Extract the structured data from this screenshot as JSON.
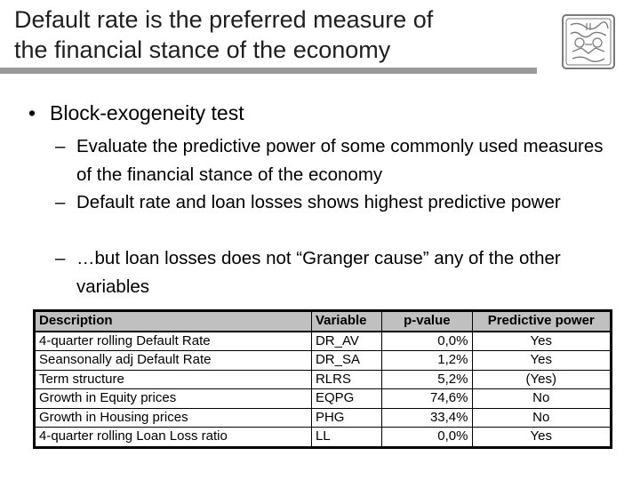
{
  "slide": {
    "title_line1": "Default rate is the preferred measure of",
    "title_line2": "the financial stance of the economy",
    "bullet": "Block-exogeneity test",
    "sub_bullets": [
      "Evaluate the predictive power of some commonly used measures of the financial stance of the economy",
      "Default rate and loan losses shows highest predictive power",
      "…but loan losses does not “Granger cause” any of the other variables"
    ],
    "bullet_symbol": "•",
    "dash_symbol": "–"
  },
  "table": {
    "headers": [
      "Description",
      "Variable",
      "p-value",
      "Predictive power"
    ],
    "rows": [
      [
        "4-quarter rolling Default Rate",
        "DR_AV",
        "0,0%",
        "Yes"
      ],
      [
        "Seansonally adj Default Rate",
        "DR_SA",
        "1,2%",
        "Yes"
      ],
      [
        "Term structure",
        "RLRS",
        "5,2%",
        "(Yes)"
      ],
      [
        "Growth in Equity prices",
        "EQPG",
        "74,6%",
        "No"
      ],
      [
        "Growth in Housing prices",
        "PHG",
        "33,4%",
        "No"
      ],
      [
        "4-quarter rolling Loan Loss ratio",
        "LL",
        "0,0%",
        "Yes"
      ]
    ],
    "header_bg": "#c0c0c0"
  },
  "colors": {
    "title_text": "#1f1f1f",
    "title_rule": "#9a9a9a",
    "seal": "#7a7a7a"
  },
  "icons": {
    "seal": "university-seal-icon"
  }
}
